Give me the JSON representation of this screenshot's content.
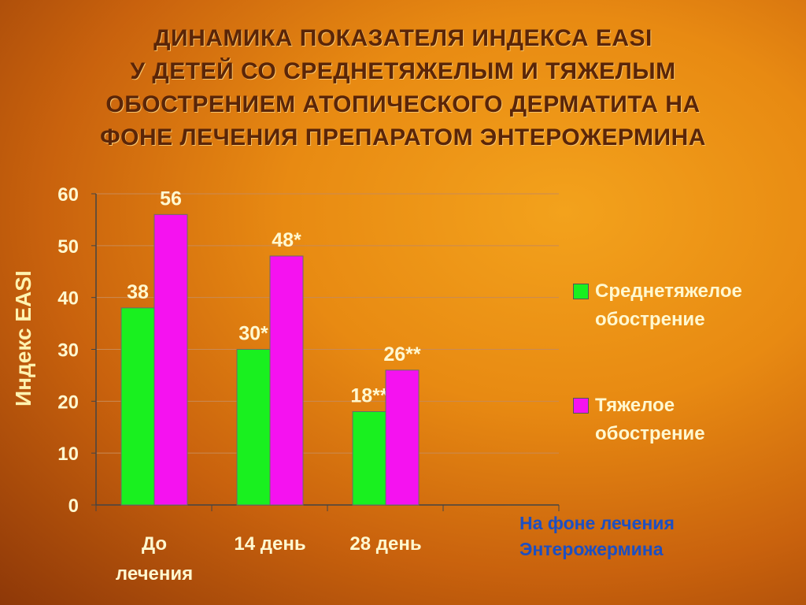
{
  "title_lines": [
    "ДИНАМИКА ПОКАЗАТЕЛЯ ИНДЕКСА EASI",
    "У ДЕТЕЙ СО СРЕДНЕТЯЖЕЛЫМ И ТЯЖЕЛЫМ",
    "ОБОСТРЕНИЕМ АТОПИЧЕСКОГО ДЕРМАТИТА НА",
    "ФОНЕ ЛЕЧЕНИЯ ПРЕПАРАТОМ ЭНТЕРОЖЕРМИНА"
  ],
  "chart_data": {
    "type": "bar",
    "ylabel": "Индекс EASI",
    "ylim": [
      0,
      60
    ],
    "yticks": [
      0,
      10,
      20,
      30,
      40,
      50,
      60
    ],
    "grid": true,
    "legend_position": "right",
    "categories": [
      [
        "До",
        "лечения"
      ],
      [
        "14 день"
      ],
      [
        "28 день"
      ]
    ],
    "series": [
      {
        "name": [
          "Среднетяжелое",
          "обострение"
        ],
        "color": "#19f01f",
        "values": [
          38,
          30,
          18
        ],
        "labels": [
          "38",
          "30*",
          "18**"
        ]
      },
      {
        "name": [
          "Тяжелое",
          "обострение"
        ],
        "color": "#f512f0",
        "values": [
          56,
          48,
          26
        ],
        "labels": [
          "56",
          "48*",
          "26**"
        ]
      }
    ]
  },
  "note_lines": [
    "На фоне лечения",
    "Энтерожермина"
  ],
  "colors": {
    "title": "#5a2508",
    "axis_text": "#fff8d0",
    "note": "#1d4fc2",
    "grid": "#c98a55"
  }
}
